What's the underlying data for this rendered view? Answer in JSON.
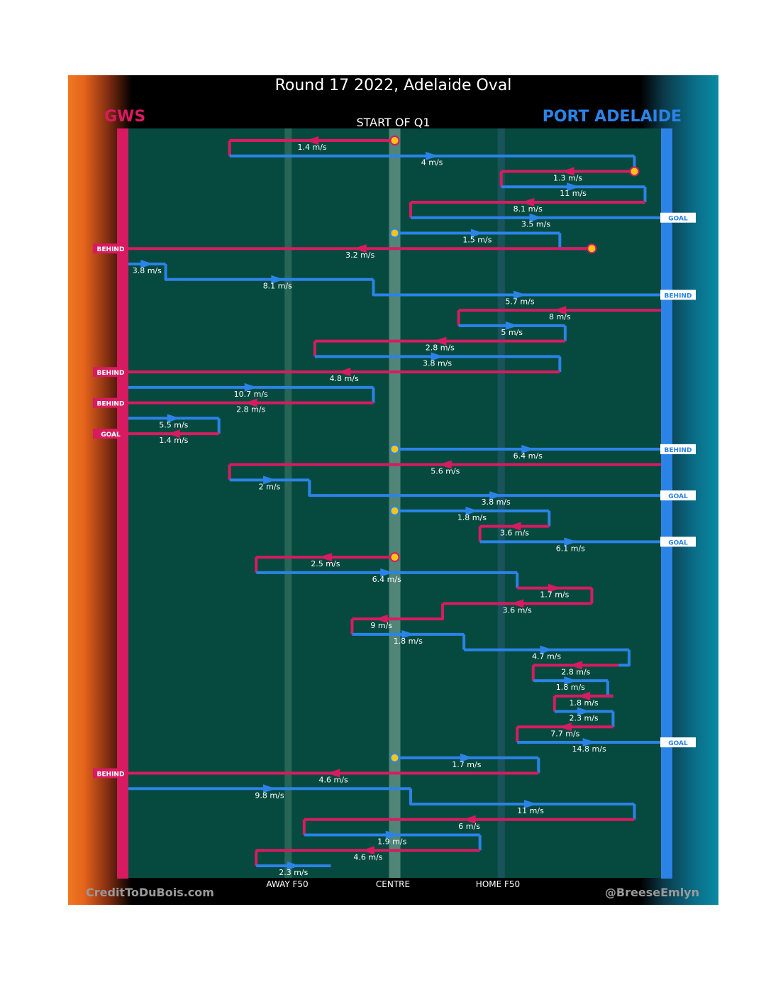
{
  "title": "Round 17 2022, Adelaide Oval",
  "start_label": "START OF Q1",
  "teams": {
    "home": "GWS",
    "away": "PORT ADELAIDE"
  },
  "colors": {
    "home": "#d81b60",
    "away": "#2b83e8",
    "pitch": "#064a3f",
    "marker": "#f5c518"
  },
  "axis_labels": {
    "away_f50": "AWAY F50",
    "centre": "CENTRE",
    "home_f50": "HOME F50"
  },
  "credits": {
    "left": "CreditToDuBois.com",
    "right": "@BreeseEmlyn"
  },
  "chart_data": {
    "type": "line",
    "description_x": "field position, 0 = GWS goal line, 100 = Port Adelaide goal line",
    "x_range": [
      0,
      100
    ],
    "reference_lines": [
      {
        "label": "AWAY F50",
        "x": 30
      },
      {
        "label": "CENTRE",
        "x": 50
      },
      {
        "label": "HOME F50",
        "x": 70
      }
    ],
    "series": [
      {
        "name": "GWS",
        "color": "#d81b60"
      },
      {
        "name": "PORT ADELAIDE",
        "color": "#2b83e8"
      }
    ],
    "chains": [
      {
        "team": "GWS",
        "speed": "1.4 m/s",
        "from": 50,
        "to": 19,
        "start_marker": true
      },
      {
        "team": "PORT ADELAIDE",
        "speed": "4 m/s",
        "from": 19,
        "to": 95
      },
      {
        "team": "GWS",
        "speed": "1.3 m/s",
        "from": 95,
        "to": 70,
        "start_marker": true
      },
      {
        "team": "PORT ADELAIDE",
        "speed": "11 m/s",
        "from": 70,
        "to": 97
      },
      {
        "team": "GWS",
        "speed": "8.1 m/s",
        "from": 97,
        "to": 53
      },
      {
        "team": "PORT ADELAIDE",
        "speed": "3.5 m/s",
        "from": 53,
        "to": 100,
        "outcome": "GOAL"
      },
      {
        "team": "PORT ADELAIDE",
        "speed": "1.5 m/s",
        "from": 50,
        "to": 81,
        "start_marker": true
      },
      {
        "team": "GWS",
        "speed": "3.2 m/s",
        "from": 87,
        "to": 0,
        "start_marker": true,
        "outcome": "BEHIND"
      },
      {
        "team": "PORT ADELAIDE",
        "speed": "3.8 m/s",
        "from": 0,
        "to": 7
      },
      {
        "team": "PORT ADELAIDE",
        "speed": "8.1 m/s",
        "from": 10,
        "to": 46
      },
      {
        "team": "PORT ADELAIDE",
        "speed": "5.7 m/s",
        "from": 47,
        "to": 100,
        "outcome": "BEHIND"
      },
      {
        "team": "GWS",
        "speed": "8 m/s",
        "from": 100,
        "to": 62
      },
      {
        "team": "PORT ADELAIDE",
        "speed": "5 m/s",
        "from": 62,
        "to": 82
      },
      {
        "team": "GWS",
        "speed": "2.8 m/s",
        "from": 82,
        "to": 35
      },
      {
        "team": "PORT ADELAIDE",
        "speed": "3.8 m/s",
        "from": 35,
        "to": 81
      },
      {
        "team": "GWS",
        "speed": "4.8 m/s",
        "from": 81,
        "to": 0,
        "outcome": "BEHIND"
      },
      {
        "team": "PORT ADELAIDE",
        "speed": "10.7 m/s",
        "from": 0,
        "to": 46
      },
      {
        "team": "GWS",
        "speed": "2.8 m/s",
        "from": 46,
        "to": 0,
        "outcome": "BEHIND"
      },
      {
        "team": "PORT ADELAIDE",
        "speed": "5.5 m/s",
        "from": 0,
        "to": 17
      },
      {
        "team": "GWS",
        "speed": "1.4 m/s",
        "from": 17,
        "to": 0,
        "outcome": "GOAL"
      },
      {
        "team": "PORT ADELAIDE",
        "speed": "6.4 m/s",
        "from": 50,
        "to": 100,
        "start_marker": true,
        "outcome": "BEHIND"
      },
      {
        "team": "GWS",
        "speed": "5.6 m/s",
        "from": 100,
        "to": 19
      },
      {
        "team": "PORT ADELAIDE",
        "speed": "2 m/s",
        "from": 19,
        "to": 34
      },
      {
        "team": "PORT ADELAIDE",
        "speed": "3.8 m/s",
        "from": 38,
        "to": 100,
        "outcome": "GOAL"
      },
      {
        "team": "PORT ADELAIDE",
        "speed": "1.8 m/s",
        "from": 50,
        "to": 79,
        "start_marker": true
      },
      {
        "team": "GWS",
        "speed": "3.6 m/s",
        "from": 79,
        "to": 66
      },
      {
        "team": "PORT ADELAIDE",
        "speed": "6.1 m/s",
        "from": 66,
        "to": 100,
        "outcome": "GOAL"
      },
      {
        "team": "GWS",
        "speed": "2.5 m/s",
        "from": 50,
        "to": 24,
        "start_marker": true
      },
      {
        "team": "PORT ADELAIDE",
        "speed": "6.4 m/s",
        "from": 24,
        "to": 73
      },
      {
        "team": "GWS",
        "speed": "1.7 m/s",
        "from": 73,
        "to": 87
      },
      {
        "team": "GWS",
        "speed": "3.6 m/s",
        "from": 87,
        "to": 59
      },
      {
        "team": "GWS",
        "speed": "9 m/s",
        "from": 53,
        "to": 42
      },
      {
        "team": "PORT ADELAIDE",
        "speed": "1.8 m/s",
        "from": 42,
        "to": 63
      },
      {
        "team": "PORT ADELAIDE",
        "speed": "4.7 m/s",
        "from": 63,
        "to": 94
      },
      {
        "team": "GWS",
        "speed": "2.8 m/s",
        "from": 92,
        "to": 76
      },
      {
        "team": "PORT ADELAIDE",
        "speed": "1.8 m/s",
        "from": 76,
        "to": 90
      },
      {
        "team": "GWS",
        "speed": "1.8 m/s",
        "from": 91,
        "to": 80
      },
      {
        "team": "PORT ADELAIDE",
        "speed": "2.3 m/s",
        "from": 80,
        "to": 91
      },
      {
        "team": "GWS",
        "speed": "7.7 m/s",
        "from": 91,
        "to": 73
      },
      {
        "team": "PORT ADELAIDE",
        "speed": "14.8 m/s",
        "from": 73,
        "to": 100,
        "outcome": "GOAL"
      },
      {
        "team": "PORT ADELAIDE",
        "speed": "1.7 m/s",
        "from": 50,
        "to": 77,
        "start_marker": true
      },
      {
        "team": "GWS",
        "speed": "4.6 m/s",
        "from": 77,
        "to": 0,
        "outcome": "BEHIND"
      },
      {
        "team": "PORT ADELAIDE",
        "speed": "9.8 m/s",
        "from": 0,
        "to": 53
      },
      {
        "team": "PORT ADELAIDE",
        "speed": "11 m/s",
        "from": 56,
        "to": 95
      },
      {
        "team": "GWS",
        "speed": "6 m/s",
        "from": 95,
        "to": 33
      },
      {
        "team": "PORT ADELAIDE",
        "speed": "1.9 m/s",
        "from": 33,
        "to": 66
      },
      {
        "team": "GWS",
        "speed": "4.6 m/s",
        "from": 66,
        "to": 24
      },
      {
        "team": "PORT ADELAIDE",
        "speed": "2.3 m/s",
        "from": 24,
        "to": 38
      }
    ]
  }
}
